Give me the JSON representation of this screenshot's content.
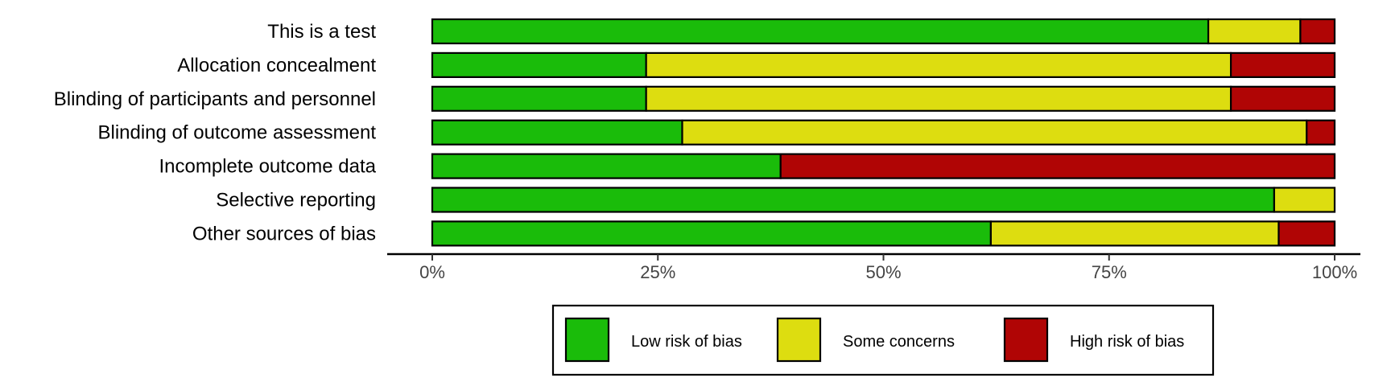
{
  "chart_data": {
    "type": "bar",
    "orientation": "horizontal",
    "stacked": true,
    "categories": [
      "This is a test",
      "Allocation concealment ",
      "Blinding of participants and personnel ",
      "Blinding of outcome assessment",
      "Incomplete outcome data",
      "Selective reporting ",
      "Other sources of bias "
    ],
    "series": [
      {
        "name": "Low risk of bias",
        "color": "#1abc0a",
        "values": [
          86,
          23.7,
          23.7,
          27.7,
          38.6,
          93.3,
          61.9
        ]
      },
      {
        "name": "Some concerns",
        "color": "#dddd10",
        "values": [
          10.2,
          64.8,
          64.8,
          69.2,
          0,
          6.7,
          31.9
        ]
      },
      {
        "name": "High risk of bias",
        "color": "#b00505",
        "values": [
          3.8,
          11.5,
          11.5,
          3.1,
          61.4,
          0,
          6.2
        ]
      }
    ],
    "x_ticks": [
      "0%",
      "25%",
      "50%",
      "75%",
      "100%"
    ],
    "xlim": [
      0,
      100
    ],
    "grid": false,
    "legend_position": "bottom"
  }
}
